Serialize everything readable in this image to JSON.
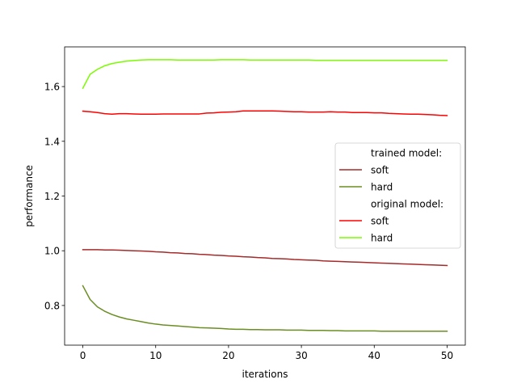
{
  "chart_data": {
    "type": "line",
    "title": "",
    "xlabel": "iterations",
    "ylabel": "performance",
    "xlim": [
      -2.5,
      52.5
    ],
    "ylim": [
      0.655,
      1.745
    ],
    "xticks": [
      0,
      10,
      20,
      30,
      40,
      50
    ],
    "yticks": [
      0.8,
      1.0,
      1.2,
      1.4,
      1.6
    ],
    "ytick_labels": [
      "0.8",
      "1.0",
      "1.2",
      "1.4",
      "1.6"
    ],
    "grid": false,
    "legend_position": "center-right",
    "legend": [
      {
        "label": "trained model:",
        "color": ""
      },
      {
        "label": "soft",
        "color": "#a52a2a"
      },
      {
        "label": "hard",
        "color": "#6b8e23"
      },
      {
        "label": "original model:",
        "color": ""
      },
      {
        "label": "soft",
        "color": "#ff0000"
      },
      {
        "label": "hard",
        "color": "#7cfc00"
      }
    ],
    "series": [
      {
        "color": "#a52a2a",
        "x": [
          0,
          1,
          2,
          3,
          4,
          5,
          6,
          7,
          8,
          9,
          10,
          11,
          12,
          13,
          14,
          15,
          16,
          17,
          18,
          19,
          20,
          21,
          22,
          23,
          24,
          25,
          26,
          27,
          28,
          29,
          30,
          31,
          32,
          33,
          34,
          35,
          36,
          37,
          38,
          39,
          40,
          41,
          42,
          43,
          44,
          45,
          46,
          47,
          48,
          49,
          50
        ],
        "y": [
          1.004,
          1.004,
          1.004,
          1.003,
          1.003,
          1.002,
          1.001,
          1.0,
          0.999,
          0.998,
          0.996,
          0.995,
          0.993,
          0.992,
          0.99,
          0.989,
          0.987,
          0.986,
          0.984,
          0.983,
          0.981,
          0.98,
          0.978,
          0.977,
          0.975,
          0.974,
          0.972,
          0.971,
          0.97,
          0.968,
          0.967,
          0.966,
          0.965,
          0.963,
          0.962,
          0.961,
          0.96,
          0.959,
          0.958,
          0.957,
          0.956,
          0.955,
          0.954,
          0.953,
          0.952,
          0.951,
          0.95,
          0.949,
          0.948,
          0.947,
          0.946
        ]
      },
      {
        "color": "#6b8e23",
        "x": [
          0,
          1,
          2,
          3,
          4,
          5,
          6,
          7,
          8,
          9,
          10,
          11,
          12,
          13,
          14,
          15,
          16,
          17,
          18,
          19,
          20,
          21,
          22,
          23,
          24,
          25,
          26,
          27,
          28,
          29,
          30,
          31,
          32,
          33,
          34,
          35,
          36,
          37,
          38,
          39,
          40,
          41,
          42,
          43,
          44,
          45,
          46,
          47,
          48,
          49,
          50
        ],
        "y": [
          0.872,
          0.822,
          0.795,
          0.779,
          0.767,
          0.758,
          0.751,
          0.746,
          0.741,
          0.736,
          0.732,
          0.729,
          0.727,
          0.725,
          0.723,
          0.721,
          0.719,
          0.718,
          0.717,
          0.716,
          0.714,
          0.713,
          0.713,
          0.712,
          0.712,
          0.711,
          0.711,
          0.711,
          0.71,
          0.71,
          0.71,
          0.709,
          0.709,
          0.709,
          0.708,
          0.708,
          0.707,
          0.707,
          0.707,
          0.707,
          0.707,
          0.706,
          0.706,
          0.706,
          0.706,
          0.706,
          0.706,
          0.706,
          0.706,
          0.706,
          0.706
        ]
      },
      {
        "color": "#ff0000",
        "x": [
          0,
          1,
          2,
          3,
          4,
          5,
          6,
          7,
          8,
          9,
          10,
          11,
          12,
          13,
          14,
          15,
          16,
          17,
          18,
          19,
          20,
          21,
          22,
          23,
          24,
          25,
          26,
          27,
          28,
          29,
          30,
          31,
          32,
          33,
          34,
          35,
          36,
          37,
          38,
          39,
          40,
          41,
          42,
          43,
          44,
          45,
          46,
          47,
          48,
          49,
          50
        ],
        "y": [
          1.51,
          1.508,
          1.505,
          1.501,
          1.499,
          1.501,
          1.501,
          1.5,
          1.499,
          1.499,
          1.499,
          1.5,
          1.5,
          1.5,
          1.5,
          1.5,
          1.5,
          1.503,
          1.504,
          1.506,
          1.507,
          1.508,
          1.511,
          1.511,
          1.511,
          1.511,
          1.511,
          1.51,
          1.509,
          1.508,
          1.508,
          1.507,
          1.507,
          1.507,
          1.508,
          1.507,
          1.507,
          1.505,
          1.505,
          1.505,
          1.504,
          1.504,
          1.502,
          1.501,
          1.5,
          1.499,
          1.499,
          1.498,
          1.497,
          1.495,
          1.494
        ]
      },
      {
        "color": "#7cfc00",
        "x": [
          0,
          1,
          2,
          3,
          4,
          5,
          6,
          7,
          8,
          9,
          10,
          11,
          12,
          13,
          14,
          15,
          16,
          17,
          18,
          19,
          20,
          21,
          22,
          23,
          24,
          25,
          26,
          27,
          28,
          29,
          30,
          31,
          32,
          33,
          34,
          35,
          36,
          37,
          38,
          39,
          40,
          41,
          42,
          43,
          44,
          45,
          46,
          47,
          48,
          49,
          50
        ],
        "y": [
          1.594,
          1.645,
          1.663,
          1.676,
          1.684,
          1.689,
          1.693,
          1.695,
          1.697,
          1.698,
          1.698,
          1.698,
          1.698,
          1.697,
          1.697,
          1.697,
          1.697,
          1.697,
          1.697,
          1.698,
          1.698,
          1.698,
          1.698,
          1.697,
          1.697,
          1.697,
          1.697,
          1.697,
          1.697,
          1.697,
          1.697,
          1.697,
          1.696,
          1.696,
          1.696,
          1.696,
          1.696,
          1.696,
          1.696,
          1.696,
          1.696,
          1.696,
          1.696,
          1.696,
          1.696,
          1.696,
          1.696,
          1.696,
          1.696,
          1.696,
          1.696
        ]
      }
    ]
  }
}
